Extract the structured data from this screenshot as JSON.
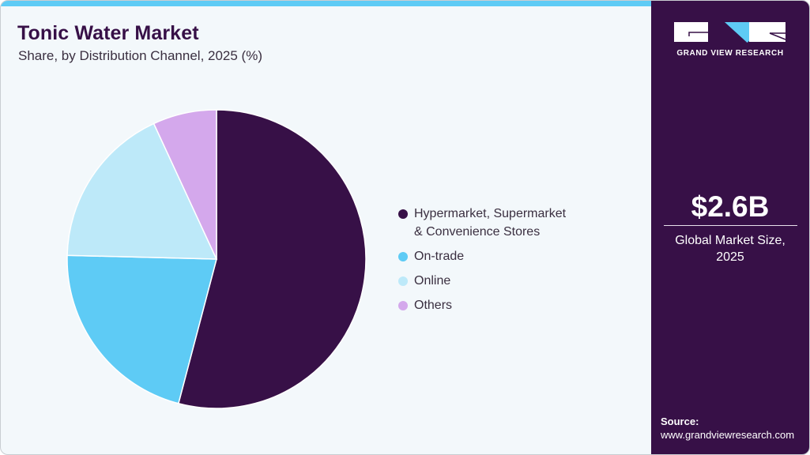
{
  "header": {
    "title": "Tonic Water Market",
    "subtitle": "Share, by Distribution Channel, 2025 (%)"
  },
  "colors": {
    "accent": "#5ecbf5",
    "brand_dark": "#371047",
    "background": "#f3f8fb"
  },
  "legend": {
    "items": [
      {
        "label_line1": "Hypermarket, Supermarket",
        "label_line2": "& Convenience Stores",
        "color": "#371047"
      },
      {
        "label_line1": "On-trade",
        "color": "#5ecbf5"
      },
      {
        "label_line1": "Online",
        "color": "#bde9f9"
      },
      {
        "label_line1": "Others",
        "color": "#d4a8ec"
      }
    ]
  },
  "sidebar": {
    "logo_text": "GRAND VIEW RESEARCH",
    "market_value": "$2.6B",
    "market_label_line1": "Global Market Size,",
    "market_label_line2": "2025",
    "source_label": "Source:",
    "source_url": "www.grandviewresearch.com"
  },
  "chart_data": {
    "type": "pie",
    "title": "Tonic Water Market",
    "subtitle": "Share, by Distribution Channel, 2025 (%)",
    "categories": [
      "Hypermarket, Supermarket & Convenience Stores",
      "On-trade",
      "Online",
      "Others"
    ],
    "values": [
      54.1,
      21.3,
      17.7,
      6.9
    ],
    "colors": [
      "#371047",
      "#5ecbf5",
      "#bde9f9",
      "#d4a8ec"
    ],
    "start_angle": "top (12 o'clock), clockwise",
    "legend_position": "right",
    "unit": "%"
  }
}
